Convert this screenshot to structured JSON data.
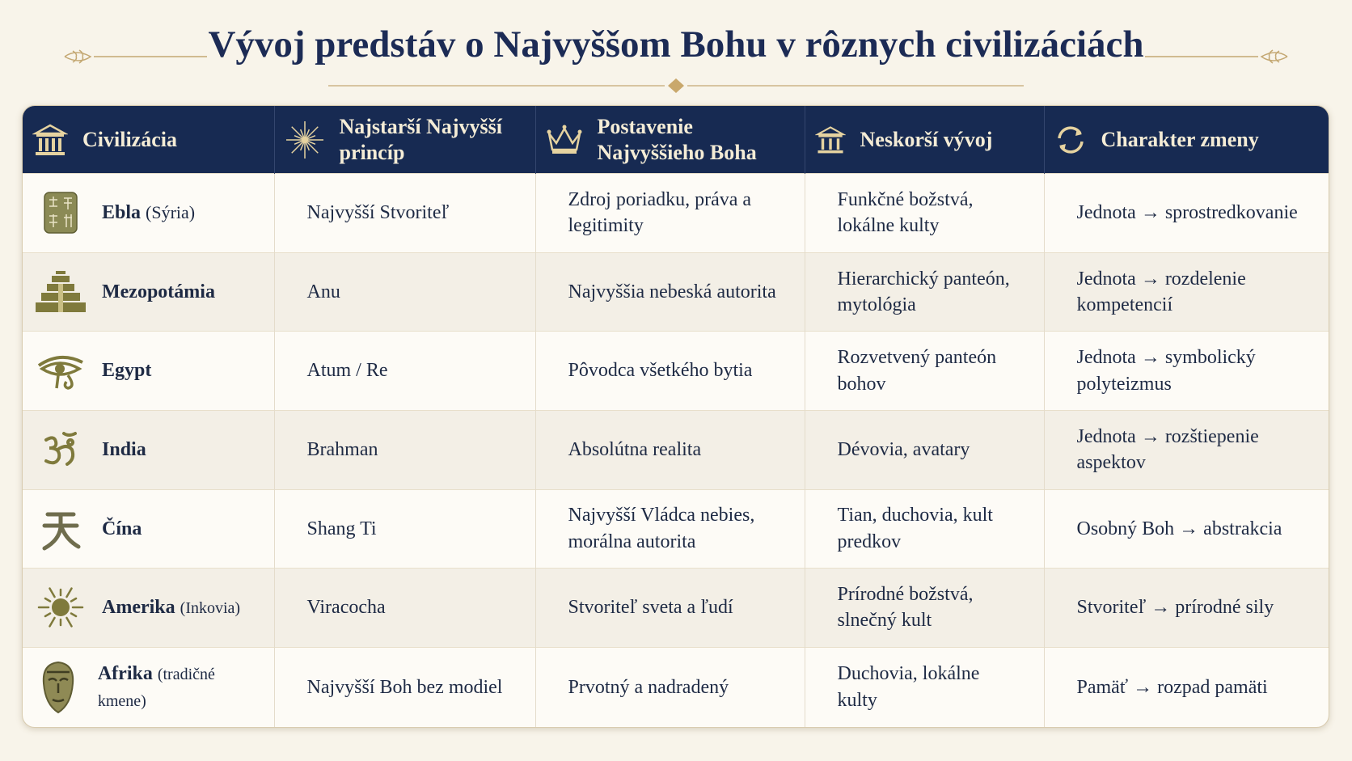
{
  "title": "Vývoj predstáv o Najvyššom Bohu v rôznych civilizáciách",
  "table": {
    "columns": [
      "Civilizácia",
      "Najstarší Najvyšší princíp",
      "Postavenie Najvyššieho Boha",
      "Neskorší vývoj",
      "Charakter zmeny"
    ],
    "rows": [
      {
        "name": "Ebla",
        "note": "(Sýria)",
        "principle": "Najvyšší Stvoriteľ",
        "status": "Zdroj poriadku, práva a legitimity",
        "later": "Funkčné božstvá, lokálne kulty",
        "change": "Jednota → sprostredkovanie"
      },
      {
        "name": "Mezopotámia",
        "principle": "Anu",
        "status": "Najvyššia nebeská autorita",
        "later": "Hierarchický panteón, mytológia",
        "change": "Jednota → rozdelenie kompetencií"
      },
      {
        "name": "Egypt",
        "principle": "Atum / Re",
        "status": "Pôvodca všetkého bytia",
        "later": "Rozvetvený panteón bohov",
        "change": "Jednota → symbolický polyteizmus"
      },
      {
        "name": "India",
        "principle": "Brahman",
        "status": "Absolútna realita",
        "later": "Dévovia, avatary",
        "change": "Jednota → rozštiepenie aspektov"
      },
      {
        "name": "Čína",
        "principle": "Shang Ti",
        "status": "Najvyšší Vládca nebies, morálna autorita",
        "later": "Tian, duchovia, kult predkov",
        "change": "Osobný Boh → abstrakcia"
      },
      {
        "name": "Amerika",
        "note": "(Inkovia)",
        "principle": "Viracocha",
        "status": "Stvoriteľ sveta a ľudí",
        "later": "Prírodné božstvá, slnečný kult",
        "change": "Stvoriteľ → prírodné sily"
      },
      {
        "name": "Afrika",
        "note": "(tradičné kmene)",
        "principle": "Najvyšší Boh bez modiel",
        "status": "Prvotný a nadradený",
        "later": "Duchovia, lokálne kulty",
        "change": "Pamäť → rozpad pamäti"
      }
    ]
  }
}
